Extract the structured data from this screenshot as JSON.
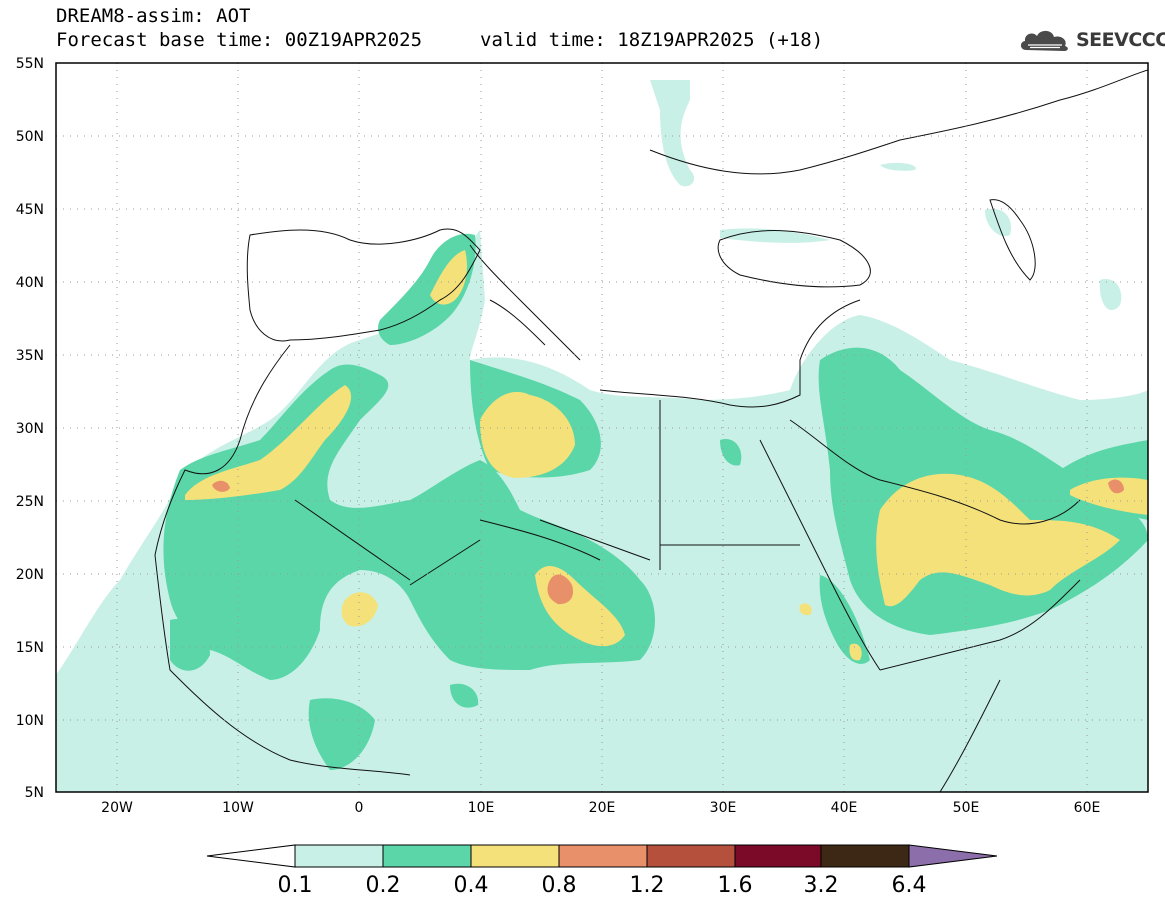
{
  "header": {
    "title": "DREAM8-assim: AOT",
    "base_time": "Forecast base time: 00Z19APR2025",
    "valid_time": "valid time: 18Z19APR2025 (+18)"
  },
  "logo": {
    "text": "SEEVCCC",
    "icon": "cloud-icon"
  },
  "map": {
    "lat_labels": [
      "55N",
      "50N",
      "45N",
      "40N",
      "35N",
      "30N",
      "25N",
      "20N",
      "15N",
      "10N",
      "5N"
    ],
    "lon_labels": [
      "20W",
      "10W",
      "0",
      "10E",
      "20E",
      "30E",
      "40E",
      "50E",
      "60E"
    ]
  },
  "colorbar": {
    "labels": [
      "0.1",
      "0.2",
      "0.4",
      "0.8",
      "1.2",
      "1.6",
      "3.2",
      "6.4"
    ],
    "colors": [
      "#ffffff",
      "#c8f0e6",
      "#5ad6a8",
      "#f5e17a",
      "#e8906a",
      "#b4503c",
      "#7a0a28",
      "#3c2814",
      "#8c6eaa"
    ]
  }
}
